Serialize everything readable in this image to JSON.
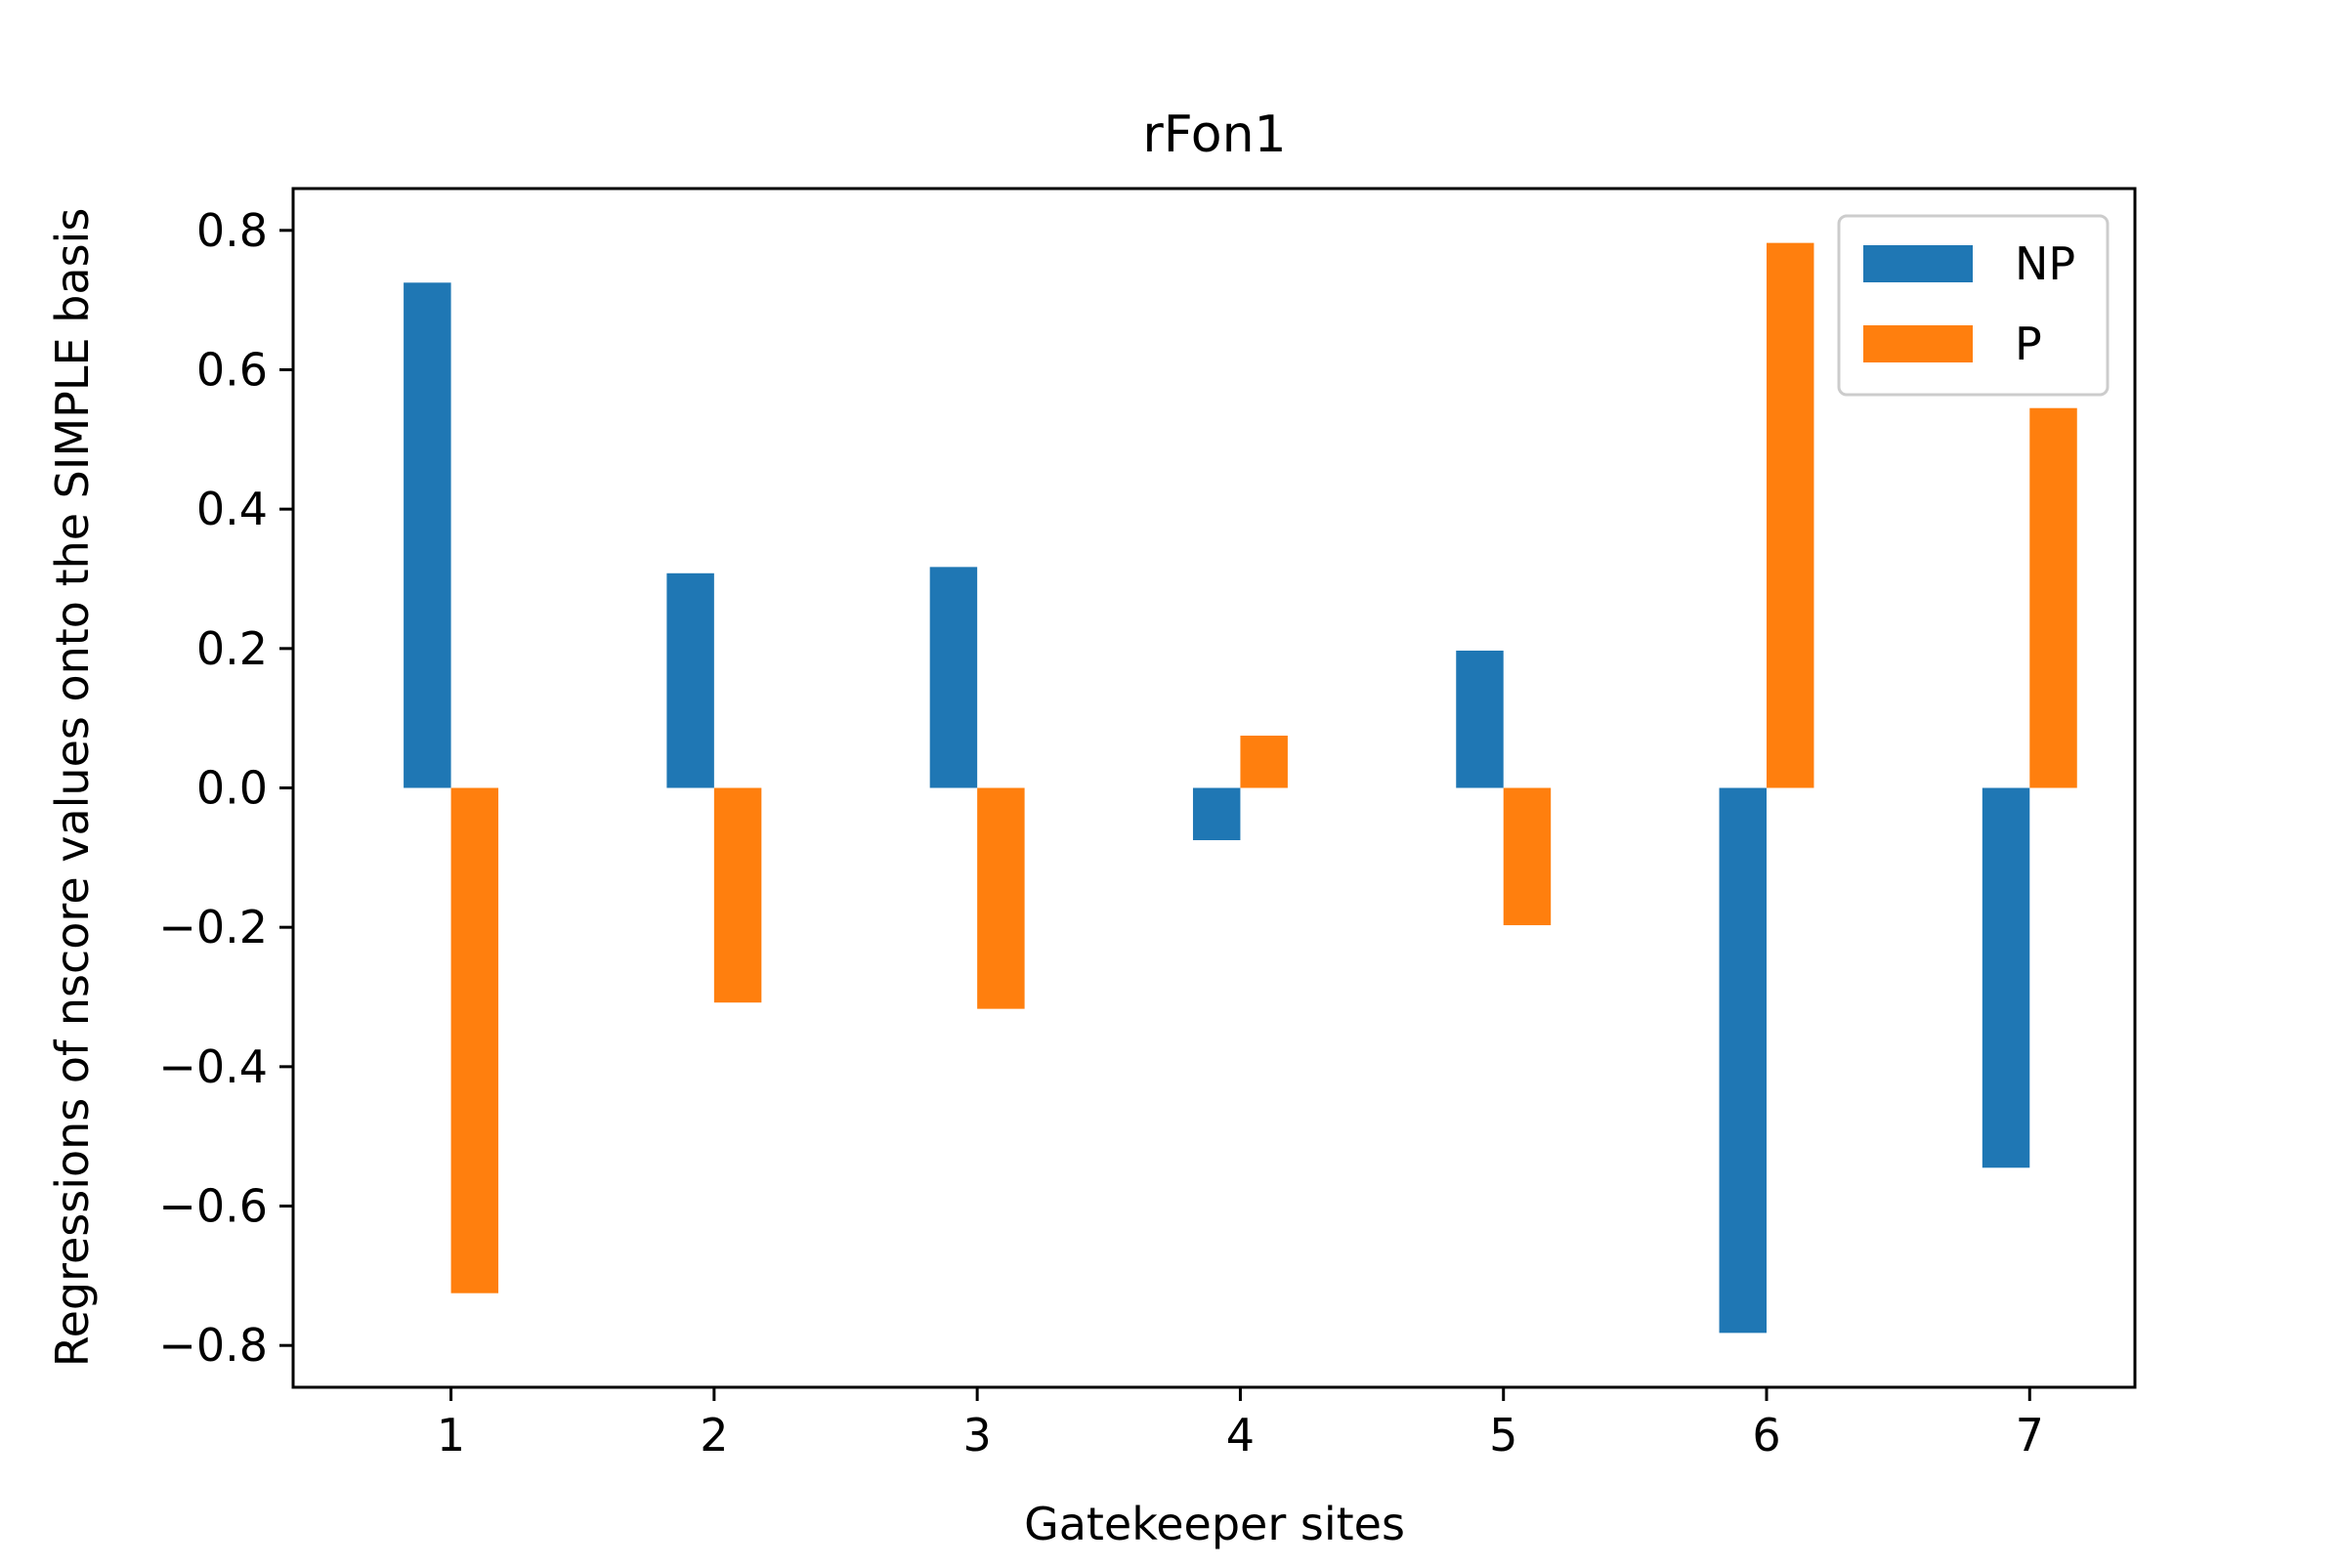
{
  "chart_data": {
    "type": "bar",
    "title": "rFon1",
    "xlabel": "Gatekeeper sites",
    "ylabel": "Regressions of nscore values onto the SIMPLE basis",
    "categories": [
      "1",
      "2",
      "3",
      "4",
      "5",
      "6",
      "7"
    ],
    "series": [
      {
        "name": "NP",
        "color": "#1f77b4",
        "values": [
          0.725,
          0.308,
          0.317,
          -0.075,
          0.197,
          -0.782,
          -0.545
        ]
      },
      {
        "name": "P",
        "color": "#ff7f0e",
        "values": [
          -0.725,
          -0.308,
          -0.317,
          0.075,
          -0.197,
          0.782,
          0.545
        ]
      }
    ],
    "xlim": [
      0.4,
      7.4
    ],
    "ylim": [
      -0.86,
      0.86
    ],
    "yticks": [
      -0.8,
      -0.6,
      -0.4,
      -0.2,
      0.0,
      0.2,
      0.4,
      0.6,
      0.8
    ],
    "ytick_labels": [
      "−0.8",
      "−0.6",
      "−0.4",
      "−0.2",
      "0.0",
      "0.2",
      "0.4",
      "0.6",
      "0.8"
    ],
    "legend_position": "upper right",
    "grid": false
  }
}
